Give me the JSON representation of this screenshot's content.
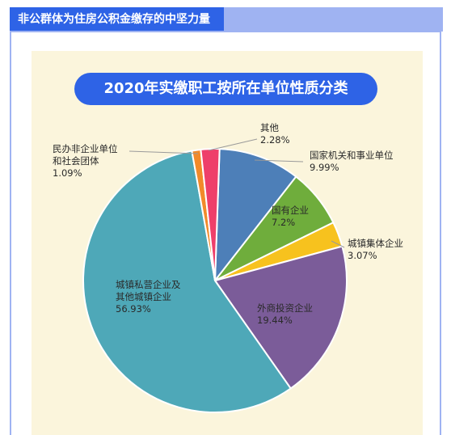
{
  "header": {
    "title": "非公群体为住房公积金缴存的中坚力量"
  },
  "chart_data": {
    "type": "pie",
    "title": "2020年实缴职工按所在单位性质分类",
    "slices": [
      {
        "label_lines": [
          "国家机关和事业单位"
        ],
        "value_text": "9.99%",
        "value": 9.99,
        "color": "#4d7fb8"
      },
      {
        "label_lines": [
          "国有企业"
        ],
        "value_text": "7.2%",
        "value": 7.2,
        "color": "#6fad3c"
      },
      {
        "label_lines": [
          "城镇集体企业"
        ],
        "value_text": "3.07%",
        "value": 3.07,
        "color": "#f7c21e"
      },
      {
        "label_lines": [
          "外商投资企业"
        ],
        "value_text": "19.44%",
        "value": 19.44,
        "color": "#7b5c99"
      },
      {
        "label_lines": [
          "城镇私营企业及",
          "其他城镇企业"
        ],
        "value_text": "56.93%",
        "value": 56.93,
        "color": "#4ea8b8"
      },
      {
        "label_lines": [
          "民办非企业单位",
          "和社会团体"
        ],
        "value_text": "1.09%",
        "value": 1.09,
        "color": "#f28a2a"
      },
      {
        "label_lines": [
          "其他"
        ],
        "value_text": "2.28%",
        "value": 2.28,
        "color": "#ee3f6a"
      }
    ]
  }
}
